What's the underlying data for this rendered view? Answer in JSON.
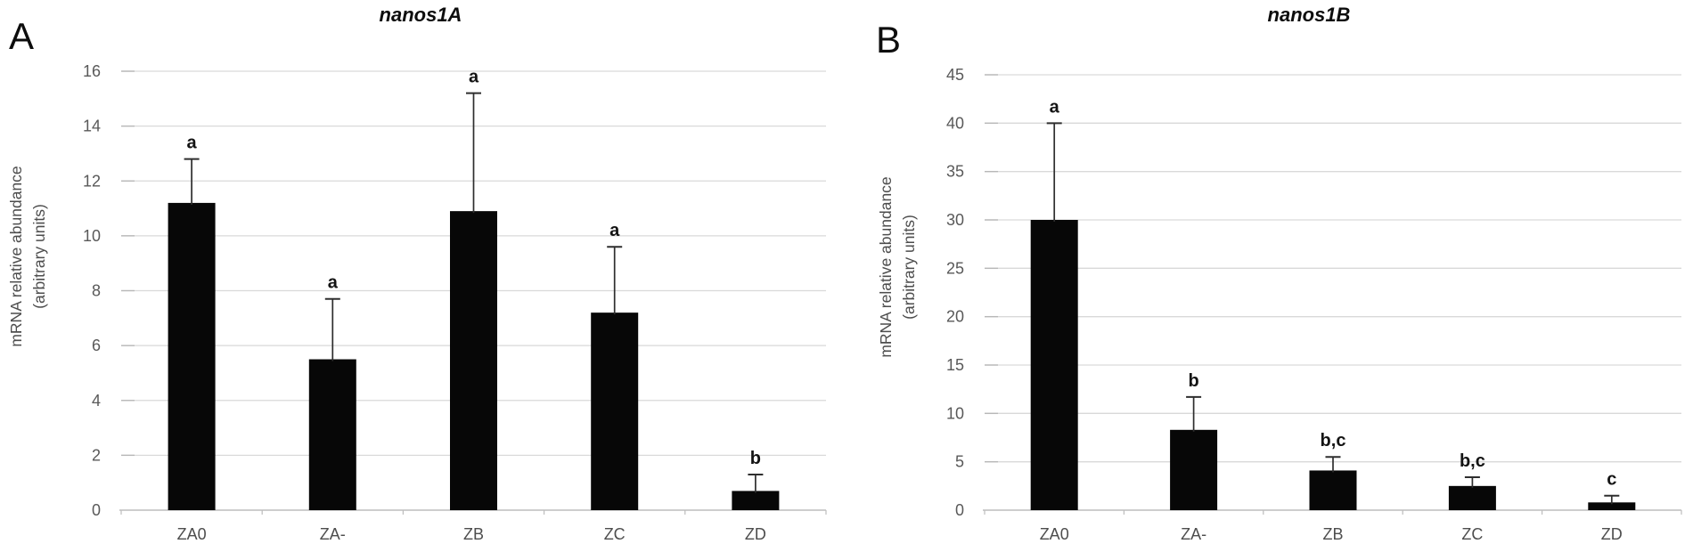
{
  "figure_type": "two-panel scientific bar figure",
  "colors": {
    "background": "#ffffff",
    "bar": "#070707",
    "gridline": "#d9d9d9",
    "axis_line": "#bdbdbd",
    "tick_text": "#595959",
    "category_text": "#4d4d4d",
    "significance_text": "#141414",
    "error_bar": "#2e2e2e"
  },
  "chart_data": [
    {
      "type": "bar",
      "panel_label": "A",
      "title": "nanos1A",
      "categories": [
        "ZA0",
        "ZA-",
        "ZB",
        "ZC",
        "ZD"
      ],
      "values": [
        11.2,
        5.5,
        10.9,
        7.2,
        0.7
      ],
      "error_plus": [
        1.6,
        2.2,
        4.3,
        2.4,
        0.6
      ],
      "significance_letters": [
        "a",
        "a",
        "a",
        "a",
        "b"
      ],
      "ylabel_line1": "mRNA relative abundance",
      "ylabel_line2": "(arbitrary units)",
      "xlabel": "",
      "ylim": [
        0,
        16
      ],
      "ytick_step": 2,
      "ytick_labels": [
        "0",
        "2",
        "4",
        "6",
        "8",
        "10",
        "12",
        "14",
        "16"
      ],
      "grid": true,
      "legend": "none",
      "bar_color": "#070707"
    },
    {
      "type": "bar",
      "panel_label": "B",
      "title": "nanos1B",
      "categories": [
        "ZA0",
        "ZA-",
        "ZB",
        "ZC",
        "ZD"
      ],
      "values": [
        30,
        8.3,
        4.1,
        2.5,
        0.8
      ],
      "error_plus": [
        10,
        3.4,
        1.4,
        0.9,
        0.7
      ],
      "significance_letters": [
        "a",
        "b",
        "b,c",
        "b,c",
        "c"
      ],
      "ylabel_line1": "mRNA relative abundance",
      "ylabel_line2": "(arbitrary units)",
      "xlabel": "",
      "ylim": [
        0,
        45
      ],
      "ytick_step": 5,
      "ytick_labels": [
        "0",
        "5",
        "10",
        "15",
        "20",
        "25",
        "30",
        "35",
        "40",
        "45"
      ],
      "grid": true,
      "legend": "none",
      "bar_color": "#070707"
    }
  ]
}
